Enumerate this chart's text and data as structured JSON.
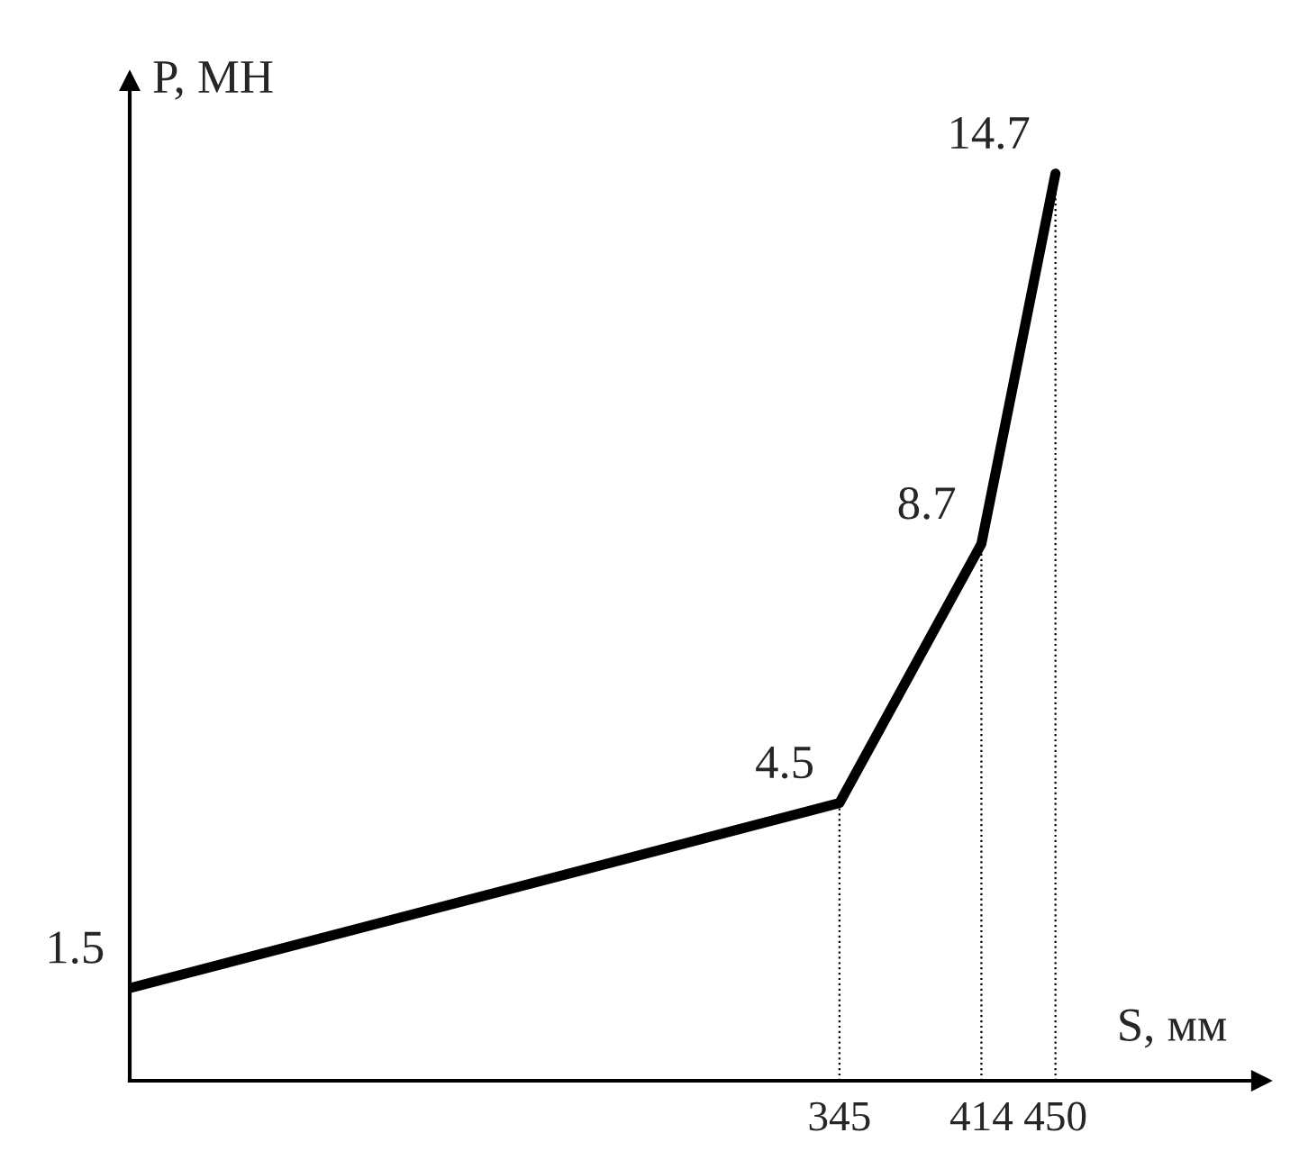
{
  "chart_data": {
    "type": "line",
    "xlabel": "S, мм",
    "ylabel": "P, МН",
    "x": [
      0,
      345,
      414,
      450
    ],
    "series": [
      {
        "color": "#000000",
        "values": [
          1.5,
          4.5,
          8.7,
          14.7
        ]
      }
    ],
    "data_labels": true,
    "xlim": [
      0,
      550
    ],
    "xticks": [
      345,
      414,
      450
    ],
    "ylim": [
      0,
      16.2
    ],
    "tick_labels": "x",
    "grid": false,
    "legend": false,
    "marker": "none",
    "line_style": "solid",
    "ref_lines": [
      {
        "axis": "x",
        "value": 345,
        "line_style": "dotted",
        "color": "#000000"
      },
      {
        "axis": "x",
        "value": 414,
        "line_style": "dotted",
        "color": "#000000"
      },
      {
        "axis": "x",
        "value": 450,
        "line_style": "dotted",
        "color": "#000000"
      }
    ]
  }
}
